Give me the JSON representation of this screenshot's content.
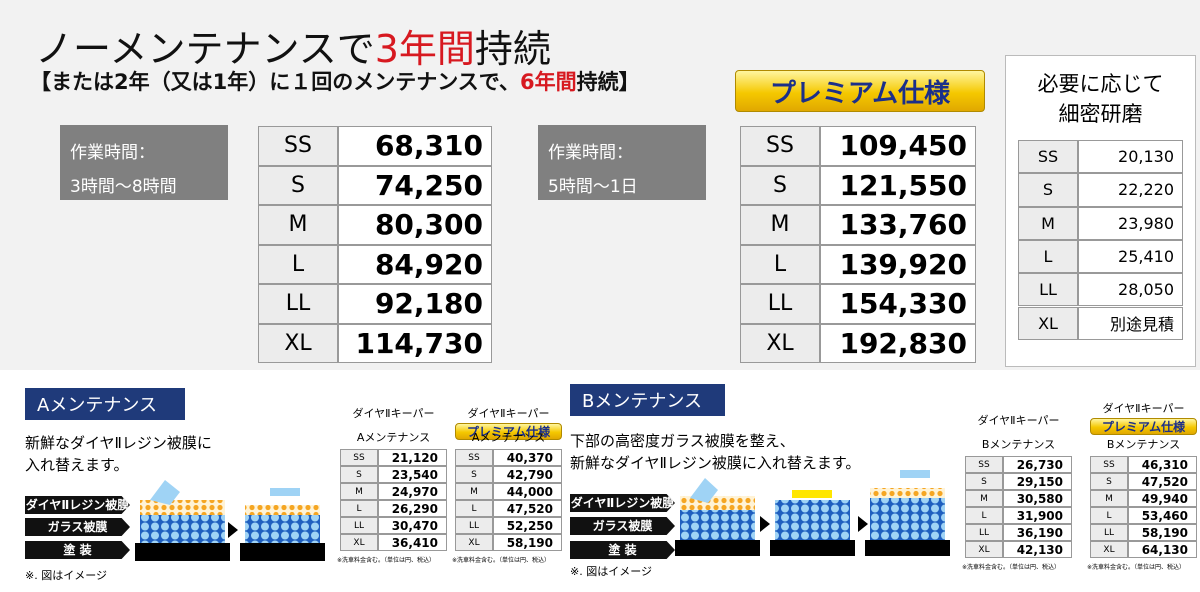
{
  "header": {
    "title": {
      "before": "ノーメンテナンスで",
      "highlight": "3年間",
      "after": "持続"
    },
    "subtitle": {
      "before": "【または2年（又は1年）に１回のメンテナンスで、",
      "highlight": "6年間",
      "after": "持続】"
    },
    "badge": "プレミアム仕様"
  },
  "standard": {
    "work_label": "作業時間：",
    "work_time": "3時間〜8時間",
    "rows": [
      [
        "SS",
        "68,310"
      ],
      [
        "S",
        "74,250"
      ],
      [
        "M",
        "80,300"
      ],
      [
        "L",
        "84,920"
      ],
      [
        "LL",
        "92,180"
      ],
      [
        "XL",
        "114,730"
      ]
    ]
  },
  "premium": {
    "work_label": "作業時間：",
    "work_time": "5時間〜1日",
    "rows": [
      [
        "SS",
        "109,450"
      ],
      [
        "S",
        "121,550"
      ],
      [
        "M",
        "133,760"
      ],
      [
        "L",
        "139,920"
      ],
      [
        "LL",
        "154,330"
      ],
      [
        "XL",
        "192,830"
      ]
    ]
  },
  "polish": {
    "title": [
      "必要に応じて",
      "細密研磨"
    ],
    "rows": [
      [
        "SS",
        "20,130"
      ],
      [
        "S",
        "22,220"
      ],
      [
        "M",
        "23,980"
      ],
      [
        "L",
        "25,410"
      ],
      [
        "LL",
        "28,050"
      ],
      [
        "XL",
        "別途見積"
      ]
    ]
  },
  "maintenance": [
    {
      "title": "Aメンテナンス",
      "description": [
        "新鮮なダイヤⅡレジン被膜に",
        "入れ替えます。"
      ],
      "layers": [
        "ダイヤⅡレジン被膜",
        "ガラス被膜",
        "塗 装"
      ],
      "note": "※. 図はイメージ",
      "tables": [
        {
          "product": "ダイヤⅡキーパー",
          "subtitle": "Aメンテナンス",
          "footnote": "※洗車料金含む。（単位は円、税込）",
          "rows": [
            [
              "SS",
              "21,120"
            ],
            [
              "S",
              "23,540"
            ],
            [
              "M",
              "24,970"
            ],
            [
              "L",
              "26,290"
            ],
            [
              "LL",
              "30,470"
            ],
            [
              "XL",
              "36,410"
            ]
          ]
        },
        {
          "product": "ダイヤⅡキーパー",
          "badge": "プレミアム仕様",
          "subtitle": "Aメンテナンス",
          "footnote": "※洗車料金含む。（単位は円、税込）",
          "rows": [
            [
              "SS",
              "40,370"
            ],
            [
              "S",
              "42,790"
            ],
            [
              "M",
              "44,000"
            ],
            [
              "L",
              "47,520"
            ],
            [
              "LL",
              "52,250"
            ],
            [
              "XL",
              "58,190"
            ]
          ]
        }
      ]
    },
    {
      "title": "Bメンテナンス",
      "description": [
        "下部の高密度ガラス被膜を整え、",
        "新鮮なダイヤⅡレジン被膜に入れ替えます。"
      ],
      "layers": [
        "ダイヤⅡレジン被膜",
        "ガラス被膜",
        "塗 装"
      ],
      "note": "※. 図はイメージ",
      "tables": [
        {
          "product": "ダイヤⅡキーパー",
          "subtitle": "Bメンテナンス",
          "footnote": "※洗車料金含む。（単位は円、税込）",
          "rows": [
            [
              "SS",
              "26,730"
            ],
            [
              "S",
              "29,150"
            ],
            [
              "M",
              "30,580"
            ],
            [
              "L",
              "31,900"
            ],
            [
              "LL",
              "36,190"
            ],
            [
              "XL",
              "42,130"
            ]
          ]
        },
        {
          "product": "ダイヤⅡキーパー",
          "badge": "プレミアム仕様",
          "subtitle": "Bメンテナンス",
          "footnote": "※洗車料金含む。（単位は円、税込）",
          "rows": [
            [
              "SS",
              "46,310"
            ],
            [
              "S",
              "47,520"
            ],
            [
              "M",
              "49,940"
            ],
            [
              "L",
              "53,460"
            ],
            [
              "LL",
              "58,190"
            ],
            [
              "XL",
              "64,130"
            ]
          ]
        }
      ]
    }
  ]
}
